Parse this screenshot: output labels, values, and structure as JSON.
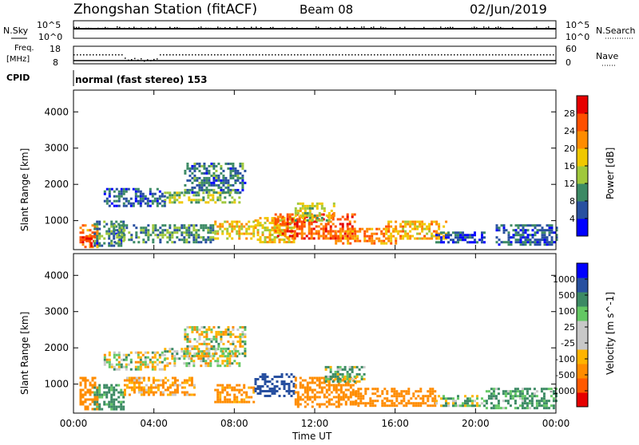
{
  "header": {
    "title": "Zhongshan Station (fitACF)",
    "beam": "Beam 08",
    "date": "02/Jun/2019"
  },
  "top_panels": {
    "nsky": {
      "label": "N.Sky",
      "ticks_left": [
        "10^5",
        "10^0"
      ],
      "ticks_right": [
        "10^5",
        "10^0"
      ],
      "right_label": "N.Search"
    },
    "freq": {
      "label_line1": "Freq.",
      "label_line2": "[MHz]",
      "ticks_left": [
        "18",
        "8"
      ],
      "ticks_right": [
        "60",
        "0"
      ],
      "right_label": "Nave"
    },
    "cpid": {
      "label": "CPID",
      "value": "normal (fast stereo) 153"
    }
  },
  "x_axis": {
    "label": "Time UT",
    "ticks": [
      "00:00",
      "04:00",
      "08:00",
      "12:00",
      "16:00",
      "20:00",
      "00:00"
    ]
  },
  "colors": {
    "power_scale": [
      "#0000ff",
      "#2850a0",
      "#3c8a64",
      "#a0c83c",
      "#f0c800",
      "#ff8c00",
      "#ff5000",
      "#e60000"
    ],
    "velocity_scale": [
      "#e60000",
      "#ff5a00",
      "#ff8c00",
      "#ffb400",
      "#c8c8c8",
      "#c8c8c8",
      "#64c864",
      "#3c8a64",
      "#2850a0",
      "#0000ff"
    ]
  },
  "chart_data": [
    {
      "type": "heatmap",
      "name": "power",
      "ylabel": "Slant Range [km]",
      "y_ticks": [
        "1000",
        "2000",
        "3000",
        "4000"
      ],
      "xlim": [
        0,
        24
      ],
      "ylim": [
        200,
        4600
      ],
      "colorbar_label": "Power [dB]",
      "colorbar_ticks": [
        "4",
        "8",
        "12",
        "16",
        "20",
        "24",
        "28"
      ],
      "colorbar_range": [
        0,
        32
      ],
      "regions": [
        {
          "t0": 0.3,
          "t1": 1.2,
          "r0": 300,
          "r1": 900,
          "v": 24
        },
        {
          "t0": 0.6,
          "t1": 1.0,
          "r0": 300,
          "r1": 600,
          "v": 28
        },
        {
          "t0": 1.0,
          "t1": 2.5,
          "r0": 300,
          "r1": 1000,
          "v": 8
        },
        {
          "t0": 1.5,
          "t1": 4.5,
          "r0": 1400,
          "r1": 1900,
          "v": 6
        },
        {
          "t0": 2.0,
          "t1": 7.0,
          "r0": 400,
          "r1": 900,
          "v": 10
        },
        {
          "t0": 4.5,
          "t1": 8.3,
          "r0": 1500,
          "r1": 1800,
          "v": 14
        },
        {
          "t0": 5.5,
          "t1": 8.5,
          "r0": 1800,
          "r1": 2600,
          "v": 8
        },
        {
          "t0": 7.0,
          "t1": 9.0,
          "r0": 500,
          "r1": 1000,
          "v": 18
        },
        {
          "t0": 9.0,
          "t1": 11.0,
          "r0": 400,
          "r1": 1100,
          "v": 18
        },
        {
          "t0": 10.0,
          "t1": 14.0,
          "r0": 500,
          "r1": 1200,
          "v": 26
        },
        {
          "t0": 11.0,
          "t1": 13.0,
          "r0": 1000,
          "r1": 1500,
          "v": 16
        },
        {
          "t0": 13.0,
          "t1": 16.0,
          "r0": 400,
          "r1": 800,
          "v": 22
        },
        {
          "t0": 15.5,
          "t1": 18.5,
          "r0": 500,
          "r1": 1000,
          "v": 20
        },
        {
          "t0": 18.0,
          "t1": 20.5,
          "r0": 400,
          "r1": 700,
          "v": 6
        },
        {
          "t0": 21.0,
          "t1": 24.0,
          "r0": 350,
          "r1": 900,
          "v": 7
        }
      ]
    },
    {
      "type": "heatmap",
      "name": "velocity",
      "ylabel": "Slant Range [km]",
      "y_ticks": [
        "1000",
        "2000",
        "3000",
        "4000"
      ],
      "xlim": [
        0,
        24
      ],
      "ylim": [
        200,
        4600
      ],
      "colorbar_label": "Velocity [m s^-1]",
      "colorbar_ticks": [
        "-1000",
        "-500",
        "-100",
        "-25",
        "25",
        "100",
        "500",
        "1000"
      ],
      "regions": [
        {
          "t0": 0.3,
          "t1": 1.2,
          "r0": 300,
          "r1": 1200,
          "v": -300
        },
        {
          "t0": 1.0,
          "t1": 2.5,
          "r0": 300,
          "r1": 1000,
          "v": 200
        },
        {
          "t0": 1.5,
          "t1": 4.5,
          "r0": 1400,
          "r1": 1900,
          "v": 0
        },
        {
          "t0": 2.5,
          "t1": 6.0,
          "r0": 700,
          "r1": 1200,
          "v": -150
        },
        {
          "t0": 4.5,
          "t1": 8.3,
          "r0": 1500,
          "r1": 2000,
          "v": 0
        },
        {
          "t0": 5.5,
          "t1": 8.5,
          "r0": 1800,
          "r1": 2600,
          "v": 0
        },
        {
          "t0": 7.0,
          "t1": 9.0,
          "r0": 500,
          "r1": 1000,
          "v": -200
        },
        {
          "t0": 9.0,
          "t1": 11.0,
          "r0": 700,
          "r1": 1300,
          "v": 700
        },
        {
          "t0": 11.0,
          "t1": 14.0,
          "r0": 400,
          "r1": 1200,
          "v": -300
        },
        {
          "t0": 12.5,
          "t1": 14.5,
          "r0": 1100,
          "r1": 1500,
          "v": 80
        },
        {
          "t0": 14.0,
          "t1": 18.0,
          "r0": 400,
          "r1": 900,
          "v": -250
        },
        {
          "t0": 18.0,
          "t1": 20.5,
          "r0": 400,
          "r1": 700,
          "v": 60
        },
        {
          "t0": 20.5,
          "t1": 24.0,
          "r0": 350,
          "r1": 900,
          "v": 150
        }
      ]
    }
  ]
}
